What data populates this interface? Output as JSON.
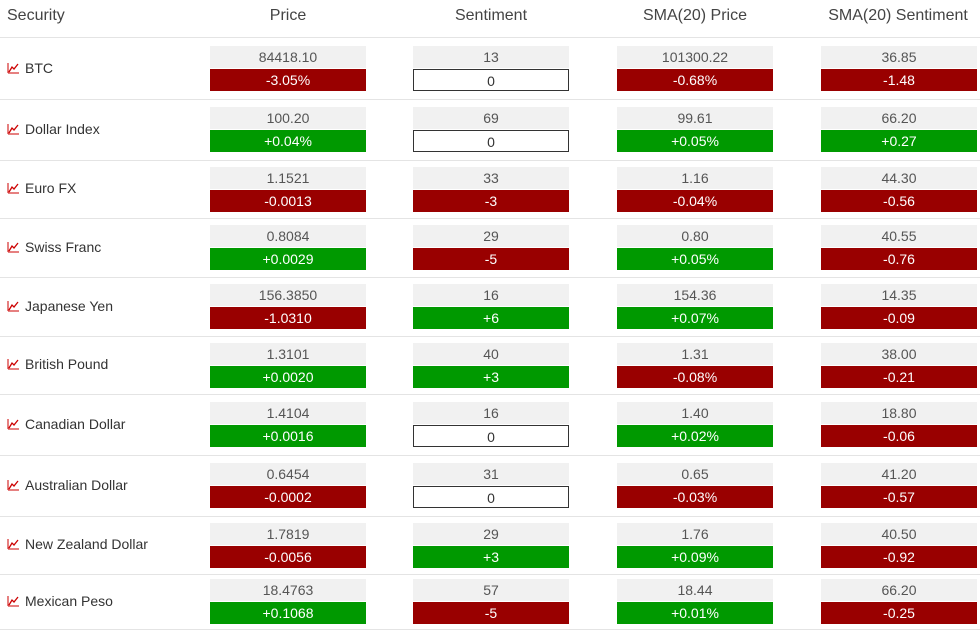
{
  "headers": {
    "security": "Security",
    "price": "Price",
    "sentiment": "Sentiment",
    "sma_price": "SMA(20) Price",
    "sma_sentiment": "SMA(20) Sentiment"
  },
  "colors": {
    "positive": "#009900",
    "negative": "#990000",
    "neutral": "#ffffff",
    "value_bg": "#f1f1f1",
    "chart_icon": "#cc0000"
  },
  "icon": "line-chart-icon",
  "rows": [
    {
      "security": "BTC",
      "price": "84418.10",
      "price_chg": "-3.05%",
      "sent": "13",
      "sent_chg": "0",
      "sma_price": "101300.22",
      "sma_price_chg": "-0.68%",
      "sma_sent": "36.85",
      "sma_sent_chg": "-1.48"
    },
    {
      "security": "Dollar Index",
      "price": "100.20",
      "price_chg": "+0.04%",
      "sent": "69",
      "sent_chg": "0",
      "sma_price": "99.61",
      "sma_price_chg": "+0.05%",
      "sma_sent": "66.20",
      "sma_sent_chg": "+0.27"
    },
    {
      "security": "Euro FX",
      "price": "1.1521",
      "price_chg": "-0.0013",
      "sent": "33",
      "sent_chg": "-3",
      "sma_price": "1.16",
      "sma_price_chg": "-0.04%",
      "sma_sent": "44.30",
      "sma_sent_chg": "-0.56"
    },
    {
      "security": "Swiss Franc",
      "price": "0.8084",
      "price_chg": "+0.0029",
      "sent": "29",
      "sent_chg": "-5",
      "sma_price": "0.80",
      "sma_price_chg": "+0.05%",
      "sma_sent": "40.55",
      "sma_sent_chg": "-0.76"
    },
    {
      "security": "Japanese Yen",
      "price": "156.3850",
      "price_chg": "-1.0310",
      "sent": "16",
      "sent_chg": "+6",
      "sma_price": "154.36",
      "sma_price_chg": "+0.07%",
      "sma_sent": "14.35",
      "sma_sent_chg": "-0.09"
    },
    {
      "security": "British Pound",
      "price": "1.3101",
      "price_chg": "+0.0020",
      "sent": "40",
      "sent_chg": "+3",
      "sma_price": "1.31",
      "sma_price_chg": "-0.08%",
      "sma_sent": "38.00",
      "sma_sent_chg": "-0.21"
    },
    {
      "security": "Canadian Dollar",
      "price": "1.4104",
      "price_chg": "+0.0016",
      "sent": "16",
      "sent_chg": "0",
      "sma_price": "1.40",
      "sma_price_chg": "+0.02%",
      "sma_sent": "18.80",
      "sma_sent_chg": "-0.06"
    },
    {
      "security": "Australian Dollar",
      "price": "0.6454",
      "price_chg": "-0.0002",
      "sent": "31",
      "sent_chg": "0",
      "sma_price": "0.65",
      "sma_price_chg": "-0.03%",
      "sma_sent": "41.20",
      "sma_sent_chg": "-0.57"
    },
    {
      "security": "New Zealand Dollar",
      "price": "1.7819",
      "price_chg": "-0.0056",
      "sent": "29",
      "sent_chg": "+3",
      "sma_price": "1.76",
      "sma_price_chg": "+0.09%",
      "sma_sent": "40.50",
      "sma_sent_chg": "-0.92"
    },
    {
      "security": "Mexican Peso",
      "price": "18.4763",
      "price_chg": "+0.1068",
      "sent": "57",
      "sent_chg": "-5",
      "sma_price": "18.44",
      "sma_price_chg": "+0.01%",
      "sma_sent": "66.20",
      "sma_sent_chg": "-0.25"
    }
  ]
}
